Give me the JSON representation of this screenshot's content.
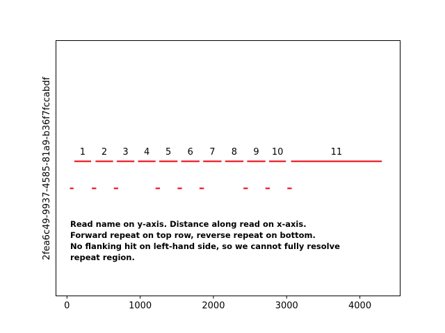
{
  "chart_data": {
    "type": "segments",
    "title": "",
    "xlabel": "",
    "ylabel": "2fea6c49-9937-4585-81a9-b36f7fccabdf",
    "xlim": [
      -150,
      4550
    ],
    "ylim": [
      0,
      1
    ],
    "xticks": [
      0,
      1000,
      2000,
      3000,
      4000
    ],
    "grid": false,
    "color": "#e8000b",
    "forward_repeats": [
      {
        "label": "1",
        "start": 100,
        "end": 330
      },
      {
        "label": "2",
        "start": 390,
        "end": 630
      },
      {
        "label": "3",
        "start": 680,
        "end": 920
      },
      {
        "label": "4",
        "start": 970,
        "end": 1210
      },
      {
        "label": "5",
        "start": 1260,
        "end": 1510
      },
      {
        "label": "6",
        "start": 1560,
        "end": 1810
      },
      {
        "label": "7",
        "start": 1860,
        "end": 2110
      },
      {
        "label": "8",
        "start": 2160,
        "end": 2410
      },
      {
        "label": "9",
        "start": 2460,
        "end": 2710
      },
      {
        "label": "10",
        "start": 2760,
        "end": 2990
      },
      {
        "label": "11",
        "start": 3060,
        "end": 4300
      }
    ],
    "reverse_repeats": [
      {
        "start": 40,
        "end": 90
      },
      {
        "start": 340,
        "end": 400
      },
      {
        "start": 640,
        "end": 700
      },
      {
        "start": 1210,
        "end": 1270
      },
      {
        "start": 1510,
        "end": 1570
      },
      {
        "start": 1810,
        "end": 1870
      },
      {
        "start": 2410,
        "end": 2470
      },
      {
        "start": 2710,
        "end": 2770
      },
      {
        "start": 3010,
        "end": 3070
      }
    ]
  },
  "annotation": {
    "lines": [
      "Read name on y-axis. Distance along read on x-axis.",
      "Forward repeat on top row, reverse repeat on bottom.",
      "No flanking hit on left-hand side, so we cannot fully resolve",
      "repeat region."
    ]
  }
}
